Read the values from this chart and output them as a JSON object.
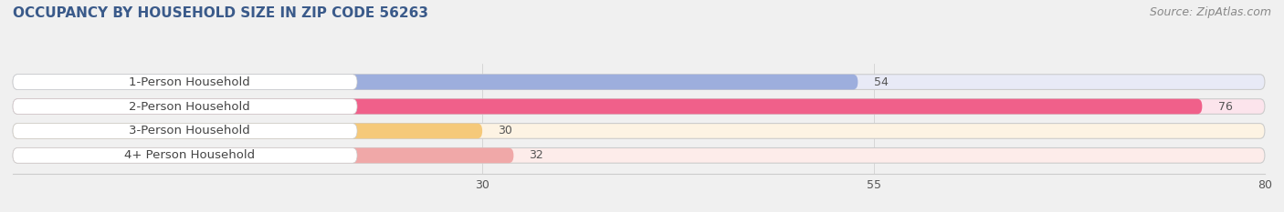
{
  "title": "OCCUPANCY BY HOUSEHOLD SIZE IN ZIP CODE 56263",
  "source": "Source: ZipAtlas.com",
  "categories": [
    "1-Person Household",
    "2-Person Household",
    "3-Person Household",
    "4+ Person Household"
  ],
  "values": [
    54,
    76,
    30,
    32
  ],
  "bar_colors": [
    "#9daedd",
    "#f0608a",
    "#f5c97a",
    "#f0a8a8"
  ],
  "bar_bg_colors": [
    "#e8eaf6",
    "#fce4ec",
    "#fdf3e3",
    "#fdecea"
  ],
  "xlim": [
    0,
    80
  ],
  "xticks": [
    30,
    55,
    80
  ],
  "title_fontsize": 11,
  "source_fontsize": 9,
  "label_fontsize": 9.5,
  "value_fontsize": 9,
  "bar_height": 0.62,
  "figsize": [
    14.06,
    2.33
  ],
  "dpi": 100,
  "bg_color": "#f0f0f0",
  "title_color": "#3a5a8a",
  "label_color": "#444444",
  "value_color": "#555555",
  "source_color": "#888888"
}
